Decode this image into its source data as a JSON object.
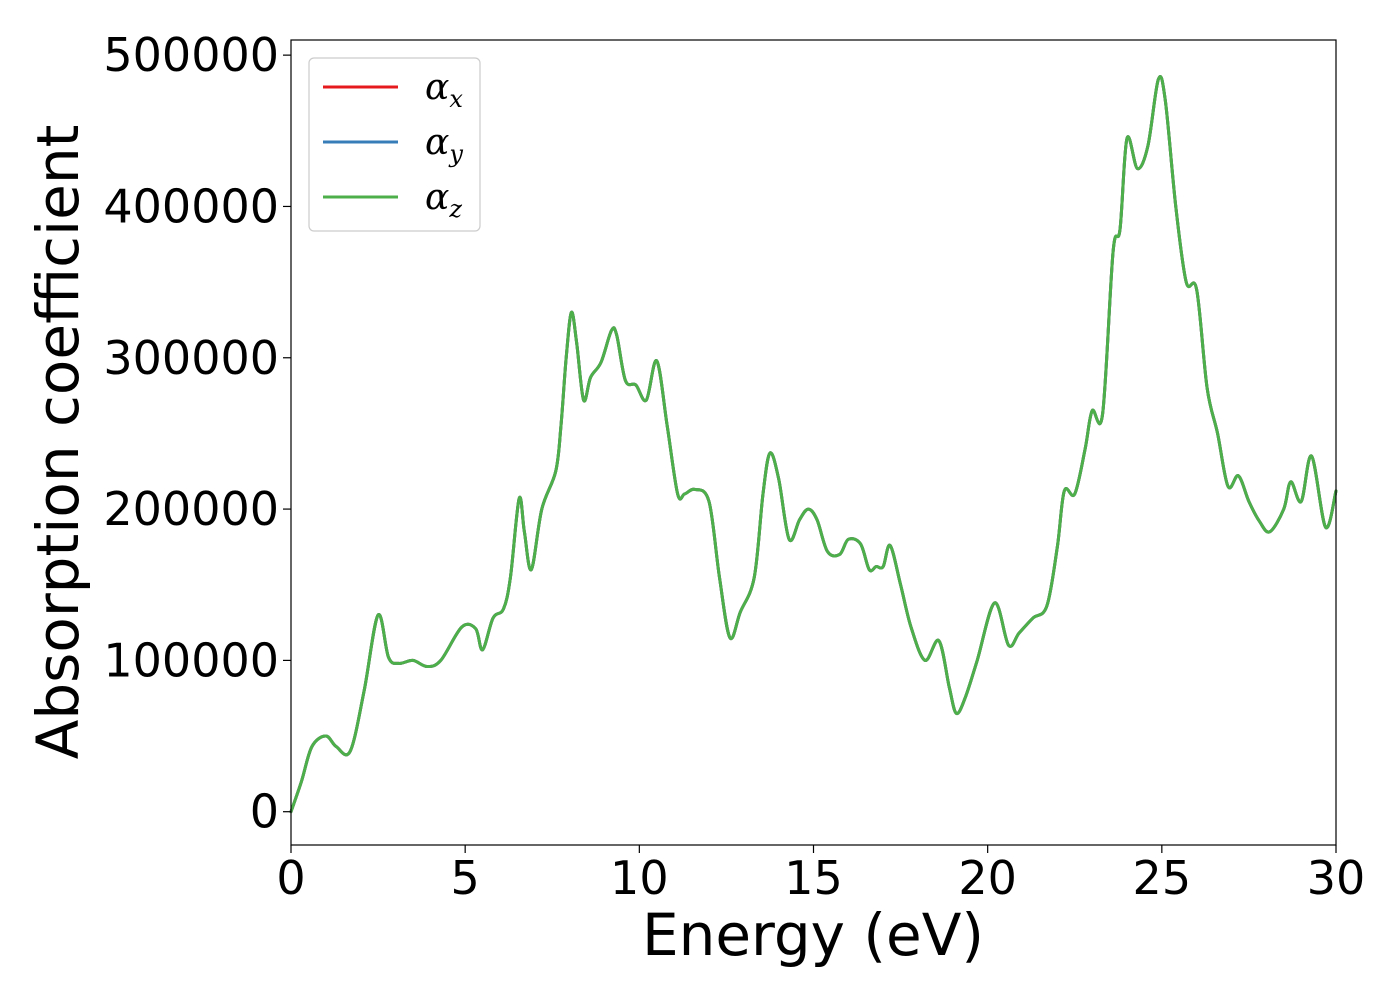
{
  "chart_data": {
    "type": "line",
    "xlabel": "Energy (eV)",
    "ylabel": "Absorption coefficient",
    "xlim": [
      0,
      30
    ],
    "ylim": [
      -22000,
      510000
    ],
    "xticks": [
      "0",
      "5",
      "10",
      "15",
      "20",
      "25",
      "30"
    ],
    "yticks": [
      "0",
      "100000",
      "200000",
      "300000",
      "400000",
      "500000"
    ],
    "legend_position": "top-left",
    "grid": false,
    "series": [
      {
        "name": "α_x",
        "legend_symbol": "α",
        "legend_subscript": "x",
        "color": "#e41a1c",
        "x": [
          0,
          0.3,
          0.6,
          1.0,
          1.3,
          1.7,
          2.1,
          2.5,
          2.8,
          3.1,
          3.5,
          3.9,
          4.3,
          4.9,
          5.3,
          5.5,
          5.8,
          6.1,
          6.3,
          6.55,
          6.7,
          6.9,
          7.2,
          7.6,
          7.75,
          7.9,
          8.05,
          8.2,
          8.4,
          8.6,
          8.9,
          9.2,
          9.35,
          9.6,
          9.9,
          10.2,
          10.5,
          10.8,
          11.1,
          11.3,
          11.6,
          12.0,
          12.3,
          12.6,
          12.9,
          13.3,
          13.55,
          13.75,
          14.0,
          14.3,
          14.6,
          14.85,
          15.1,
          15.4,
          15.75,
          16.0,
          16.35,
          16.6,
          16.8,
          17.0,
          17.2,
          17.5,
          17.8,
          18.2,
          18.6,
          18.9,
          19.1,
          19.35,
          19.7,
          20.2,
          20.6,
          20.9,
          21.3,
          21.7,
          22.0,
          22.2,
          22.5,
          22.8,
          23.0,
          23.3,
          23.6,
          23.8,
          24.0,
          24.3,
          24.6,
          24.9,
          25.1,
          25.4,
          25.7,
          26.0,
          26.3,
          26.6,
          26.9,
          27.2,
          27.5,
          27.8,
          28.1,
          28.5,
          28.7,
          29.0,
          29.3,
          29.7,
          30.0
        ],
        "values": [
          0,
          20000,
          43000,
          50000,
          43000,
          40000,
          80000,
          130000,
          102000,
          98000,
          100000,
          96000,
          100000,
          122000,
          121000,
          107000,
          128000,
          134000,
          155000,
          207000,
          185000,
          160000,
          200000,
          225000,
          255000,
          300000,
          330000,
          310000,
          272000,
          287000,
          297000,
          318000,
          315000,
          285000,
          282000,
          272000,
          298000,
          255000,
          210000,
          210000,
          213000,
          205000,
          155000,
          115000,
          132000,
          155000,
          210000,
          237000,
          220000,
          180000,
          193000,
          200000,
          193000,
          172000,
          170000,
          180000,
          177000,
          160000,
          162000,
          162000,
          176000,
          150000,
          122000,
          100000,
          113000,
          82000,
          65000,
          75000,
          100000,
          138000,
          110000,
          118000,
          128000,
          136000,
          175000,
          212000,
          210000,
          240000,
          265000,
          263000,
          370000,
          385000,
          445000,
          425000,
          440000,
          484000,
          470000,
          400000,
          350000,
          345000,
          280000,
          250000,
          215000,
          222000,
          205000,
          192000,
          185000,
          200000,
          218000,
          205000,
          235000,
          188000,
          212000
        ]
      },
      {
        "name": "α_y",
        "legend_symbol": "α",
        "legend_subscript": "y",
        "color": "#377eb8",
        "x": [
          0,
          0.3,
          0.6,
          1.0,
          1.3,
          1.7,
          2.1,
          2.5,
          2.8,
          3.1,
          3.5,
          3.9,
          4.3,
          4.9,
          5.3,
          5.5,
          5.8,
          6.1,
          6.3,
          6.55,
          6.7,
          6.9,
          7.2,
          7.6,
          7.75,
          7.9,
          8.05,
          8.2,
          8.4,
          8.6,
          8.9,
          9.2,
          9.35,
          9.6,
          9.9,
          10.2,
          10.5,
          10.8,
          11.1,
          11.3,
          11.6,
          12.0,
          12.3,
          12.6,
          12.9,
          13.3,
          13.55,
          13.75,
          14.0,
          14.3,
          14.6,
          14.85,
          15.1,
          15.4,
          15.75,
          16.0,
          16.35,
          16.6,
          16.8,
          17.0,
          17.2,
          17.5,
          17.8,
          18.2,
          18.6,
          18.9,
          19.1,
          19.35,
          19.7,
          20.2,
          20.6,
          20.9,
          21.3,
          21.7,
          22.0,
          22.2,
          22.5,
          22.8,
          23.0,
          23.3,
          23.6,
          23.8,
          24.0,
          24.3,
          24.6,
          24.9,
          25.1,
          25.4,
          25.7,
          26.0,
          26.3,
          26.6,
          26.9,
          27.2,
          27.5,
          27.8,
          28.1,
          28.5,
          28.7,
          29.0,
          29.3,
          29.7,
          30.0
        ],
        "values": [
          0,
          20000,
          43000,
          50000,
          43000,
          40000,
          80000,
          130000,
          102000,
          98000,
          100000,
          96000,
          100000,
          122000,
          121000,
          107000,
          128000,
          134000,
          155000,
          207000,
          185000,
          160000,
          200000,
          225000,
          255000,
          300000,
          330000,
          310000,
          272000,
          287000,
          297000,
          318000,
          315000,
          285000,
          282000,
          272000,
          298000,
          255000,
          210000,
          210000,
          213000,
          205000,
          155000,
          115000,
          132000,
          155000,
          210000,
          237000,
          220000,
          180000,
          193000,
          200000,
          193000,
          172000,
          170000,
          180000,
          177000,
          160000,
          162000,
          162000,
          176000,
          150000,
          122000,
          100000,
          113000,
          82000,
          65000,
          75000,
          100000,
          138000,
          110000,
          118000,
          128000,
          136000,
          175000,
          212000,
          210000,
          240000,
          265000,
          263000,
          370000,
          385000,
          445000,
          425000,
          440000,
          484000,
          470000,
          400000,
          350000,
          345000,
          280000,
          250000,
          215000,
          222000,
          205000,
          192000,
          185000,
          200000,
          218000,
          205000,
          235000,
          188000,
          212000
        ]
      },
      {
        "name": "α_z",
        "legend_symbol": "α",
        "legend_subscript": "z",
        "color": "#4daf4a",
        "x": [
          0,
          0.3,
          0.6,
          1.0,
          1.3,
          1.7,
          2.1,
          2.5,
          2.8,
          3.1,
          3.5,
          3.9,
          4.3,
          4.9,
          5.3,
          5.5,
          5.8,
          6.1,
          6.3,
          6.55,
          6.7,
          6.9,
          7.2,
          7.6,
          7.75,
          7.9,
          8.05,
          8.2,
          8.4,
          8.6,
          8.9,
          9.2,
          9.35,
          9.6,
          9.9,
          10.2,
          10.5,
          10.8,
          11.1,
          11.3,
          11.6,
          12.0,
          12.3,
          12.6,
          12.9,
          13.3,
          13.55,
          13.75,
          14.0,
          14.3,
          14.6,
          14.85,
          15.1,
          15.4,
          15.75,
          16.0,
          16.35,
          16.6,
          16.8,
          17.0,
          17.2,
          17.5,
          17.8,
          18.2,
          18.6,
          18.9,
          19.1,
          19.35,
          19.7,
          20.2,
          20.6,
          20.9,
          21.3,
          21.7,
          22.0,
          22.2,
          22.5,
          22.8,
          23.0,
          23.3,
          23.6,
          23.8,
          24.0,
          24.3,
          24.6,
          24.9,
          25.1,
          25.4,
          25.7,
          26.0,
          26.3,
          26.6,
          26.9,
          27.2,
          27.5,
          27.8,
          28.1,
          28.5,
          28.7,
          29.0,
          29.3,
          29.7,
          30.0
        ],
        "values": [
          0,
          20000,
          43000,
          50000,
          43000,
          40000,
          80000,
          130000,
          102000,
          98000,
          100000,
          96000,
          100000,
          122000,
          121000,
          107000,
          128000,
          134000,
          155000,
          207000,
          185000,
          160000,
          200000,
          225000,
          255000,
          300000,
          330000,
          310000,
          272000,
          287000,
          297000,
          318000,
          315000,
          285000,
          282000,
          272000,
          298000,
          255000,
          210000,
          210000,
          213000,
          205000,
          155000,
          115000,
          132000,
          155000,
          210000,
          237000,
          220000,
          180000,
          193000,
          200000,
          193000,
          172000,
          170000,
          180000,
          177000,
          160000,
          162000,
          162000,
          176000,
          150000,
          122000,
          100000,
          113000,
          82000,
          65000,
          75000,
          100000,
          138000,
          110000,
          118000,
          128000,
          136000,
          175000,
          212000,
          210000,
          240000,
          265000,
          263000,
          370000,
          385000,
          445000,
          425000,
          440000,
          484000,
          470000,
          400000,
          350000,
          345000,
          280000,
          250000,
          215000,
          222000,
          205000,
          192000,
          185000,
          200000,
          218000,
          205000,
          235000,
          188000,
          212000
        ]
      }
    ]
  }
}
